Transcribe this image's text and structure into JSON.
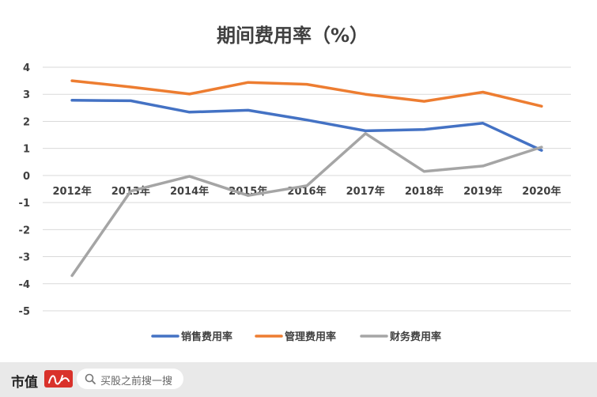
{
  "chart_data": {
    "type": "line",
    "title": "期间费用率（%）",
    "categories": [
      "2012年",
      "2013年",
      "2014年",
      "2015年",
      "2016年",
      "2017年",
      "2018年",
      "2019年",
      "2020年"
    ],
    "yticks": [
      "4",
      "3",
      "2",
      "1",
      "0",
      "-1",
      "-2",
      "-3",
      "-4",
      "-5"
    ],
    "ylim": [
      -5,
      4
    ],
    "grid": true,
    "legend_position": "bottom",
    "series": [
      {
        "name": "销售费用率",
        "color": "#4472c4",
        "values": [
          2.78,
          2.76,
          2.34,
          2.41,
          2.05,
          1.65,
          1.7,
          1.93,
          0.93
        ]
      },
      {
        "name": "管理费用率",
        "color": "#ed7d31",
        "values": [
          3.5,
          3.27,
          3.01,
          3.44,
          3.37,
          3.0,
          2.74,
          3.08,
          2.56
        ]
      },
      {
        "name": "财务费用率",
        "color": "#a5a5a5",
        "values": [
          -3.7,
          -0.58,
          -0.03,
          -0.74,
          -0.38,
          1.55,
          0.15,
          0.35,
          1.05
        ]
      }
    ]
  },
  "footer": {
    "brand": "市值",
    "search_placeholder": "买股之前搜一搜",
    "search_icon": "search-icon"
  }
}
